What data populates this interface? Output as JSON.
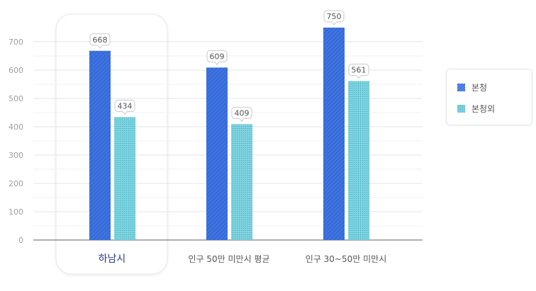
{
  "chart_data": {
    "type": "bar",
    "categories": [
      "하남시",
      "인구 50만 미만시 평균",
      "인구 30~50만 미만시"
    ],
    "highlighted_category": "하남시",
    "series": [
      {
        "name": "본청",
        "values": [
          668,
          609,
          750
        ],
        "color": "#3e73e0"
      },
      {
        "name": "본청외",
        "values": [
          434,
          409,
          561
        ],
        "color": "#7fd4e0"
      }
    ],
    "ylim": [
      0,
      700
    ],
    "yticks": [
      0,
      100,
      200,
      300,
      400,
      500,
      600,
      700
    ],
    "grid": true,
    "legend_position": "right",
    "data_labels": true
  },
  "colors": {
    "series_1": "#3e73e0",
    "series_2": "#7fd4e0",
    "highlight_label": "#2a3a8c"
  }
}
